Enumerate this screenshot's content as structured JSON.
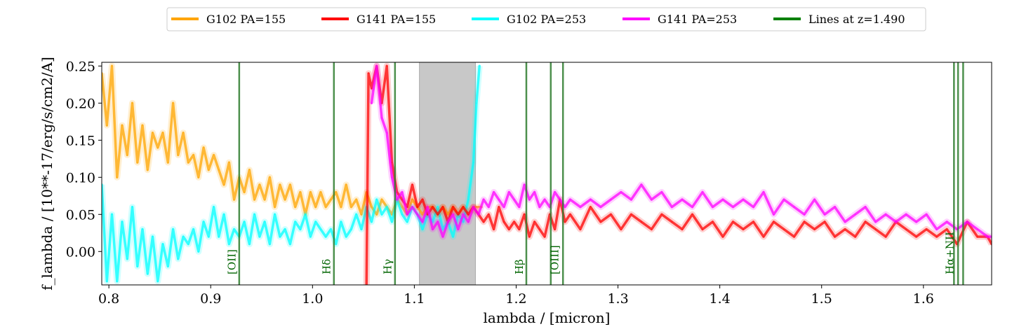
{
  "chart_data": {
    "type": "line",
    "xlabel": "lambda / [micron]",
    "ylabel": "f_lambda / [10**-17/erg/s/cm2/A]",
    "xlim": [
      0.793,
      1.667
    ],
    "ylim": [
      -0.045,
      0.255
    ],
    "xticks": [
      0.8,
      0.9,
      1.0,
      1.1,
      1.2,
      1.3,
      1.4,
      1.5,
      1.6
    ],
    "xtick_labels": [
      "0.8",
      "0.9",
      "1.0",
      "1.1",
      "1.2",
      "1.3",
      "1.4",
      "1.5",
      "1.6"
    ],
    "yticks": [
      0.0,
      0.05,
      0.1,
      0.15,
      0.2,
      0.25
    ],
    "ytick_labels": [
      "0.00",
      "0.05",
      "0.10",
      "0.15",
      "0.20",
      "0.25"
    ],
    "grid": false,
    "legend_position": "top-center, above plot",
    "legend": [
      {
        "label": "G102 PA=155",
        "color": "#ffa500"
      },
      {
        "label": "G141 PA=155",
        "color": "#ff0000"
      },
      {
        "label": "G102 PA=253",
        "color": "#00ffff"
      },
      {
        "label": "G141 PA=253",
        "color": "#ff00ff"
      },
      {
        "label": "Lines at z=1.490",
        "color": "#008000"
      }
    ],
    "masked_region": {
      "x": [
        1.105,
        1.16
      ],
      "color": "#c8c8c8"
    },
    "emission_lines": [
      {
        "label": "[OII]",
        "x": [
          0.928
        ],
        "label_x": 0.921
      },
      {
        "label": "Hδ",
        "x": [
          1.021
        ],
        "label_x": 1.014
      },
      {
        "label": "Hγ",
        "x": [
          1.081
        ],
        "label_x": 1.074
      },
      {
        "label": "Hβ",
        "x": [
          1.21
        ],
        "label_x": 1.203
      },
      {
        "label": "[OIII]",
        "x": [
          1.234,
          1.246
        ],
        "label_x": 1.238
      },
      {
        "label": "Hα+NII",
        "x": [
          1.63,
          1.634,
          1.639
        ],
        "label_x": 1.626
      }
    ],
    "series": [
      {
        "name": "G102 PA=155",
        "color": "#ffa500",
        "x": [
          0.793,
          0.798,
          0.803,
          0.808,
          0.813,
          0.818,
          0.823,
          0.828,
          0.833,
          0.838,
          0.843,
          0.848,
          0.853,
          0.858,
          0.863,
          0.868,
          0.873,
          0.878,
          0.883,
          0.888,
          0.893,
          0.898,
          0.903,
          0.908,
          0.913,
          0.918,
          0.923,
          0.928,
          0.933,
          0.938,
          0.943,
          0.948,
          0.953,
          0.958,
          0.963,
          0.968,
          0.973,
          0.978,
          0.983,
          0.988,
          0.993,
          0.998,
          1.003,
          1.008,
          1.013,
          1.018,
          1.023,
          1.028,
          1.033,
          1.038,
          1.043,
          1.048,
          1.053,
          1.058,
          1.063,
          1.068,
          1.073,
          1.078,
          1.083,
          1.088,
          1.093,
          1.098,
          1.103,
          1.108,
          1.113,
          1.118,
          1.123,
          1.128,
          1.133,
          1.138,
          1.143,
          1.148,
          1.153,
          1.158,
          1.163,
          1.166
        ],
        "y": [
          0.24,
          0.17,
          0.25,
          0.1,
          0.17,
          0.13,
          0.2,
          0.12,
          0.17,
          0.11,
          0.16,
          0.14,
          0.16,
          0.12,
          0.2,
          0.13,
          0.16,
          0.12,
          0.13,
          0.1,
          0.14,
          0.11,
          0.13,
          0.11,
          0.09,
          0.12,
          0.07,
          0.1,
          0.08,
          0.11,
          0.07,
          0.09,
          0.07,
          0.1,
          0.06,
          0.09,
          0.07,
          0.09,
          0.06,
          0.08,
          0.05,
          0.08,
          0.06,
          0.08,
          0.06,
          0.07,
          0.08,
          0.06,
          0.09,
          0.06,
          0.07,
          0.05,
          0.08,
          0.06,
          0.05,
          0.07,
          0.06,
          0.05,
          0.07,
          0.06,
          0.05,
          0.07,
          0.06,
          0.05,
          0.06,
          0.06,
          0.05,
          0.06,
          0.05,
          0.06,
          0.05,
          0.06,
          0.05,
          0.06,
          0.06,
          0.06
        ]
      },
      {
        "name": "G102 PA=253",
        "color": "#00ffff",
        "x": [
          0.793,
          0.798,
          0.803,
          0.808,
          0.813,
          0.818,
          0.823,
          0.828,
          0.833,
          0.838,
          0.843,
          0.848,
          0.853,
          0.858,
          0.863,
          0.868,
          0.873,
          0.878,
          0.883,
          0.888,
          0.893,
          0.898,
          0.903,
          0.908,
          0.913,
          0.918,
          0.923,
          0.928,
          0.933,
          0.938,
          0.943,
          0.948,
          0.953,
          0.958,
          0.963,
          0.968,
          0.973,
          0.978,
          0.983,
          0.988,
          0.993,
          0.998,
          1.003,
          1.008,
          1.013,
          1.018,
          1.023,
          1.028,
          1.033,
          1.038,
          1.043,
          1.048,
          1.053,
          1.058,
          1.063,
          1.068,
          1.073,
          1.078,
          1.083,
          1.088,
          1.093,
          1.098,
          1.103,
          1.108,
          1.113,
          1.118,
          1.123,
          1.128,
          1.133,
          1.138,
          1.143,
          1.148,
          1.153,
          1.158,
          1.161,
          1.164
        ],
        "y": [
          0.09,
          -0.04,
          0.05,
          -0.04,
          0.04,
          -0.01,
          0.06,
          -0.02,
          0.03,
          -0.03,
          0.02,
          -0.04,
          0.01,
          -0.02,
          0.03,
          -0.01,
          0.02,
          0.01,
          0.03,
          0.0,
          0.04,
          0.02,
          0.06,
          0.02,
          0.05,
          0.01,
          0.03,
          0.02,
          0.04,
          0.01,
          0.05,
          0.02,
          0.04,
          0.01,
          0.05,
          0.02,
          0.03,
          0.01,
          0.04,
          0.03,
          0.05,
          0.02,
          0.04,
          0.03,
          0.02,
          0.03,
          0.01,
          0.04,
          0.02,
          0.03,
          0.05,
          0.03,
          0.06,
          0.04,
          0.07,
          0.05,
          0.06,
          0.04,
          0.07,
          0.05,
          0.04,
          0.06,
          0.05,
          0.03,
          0.05,
          0.04,
          0.06,
          0.03,
          0.04,
          0.02,
          0.05,
          0.04,
          0.07,
          0.12,
          0.2,
          0.25
        ]
      },
      {
        "name": "G141 PA=155",
        "color": "#ff0000",
        "x": [
          1.053,
          1.055,
          1.058,
          1.063,
          1.068,
          1.073,
          1.078,
          1.083,
          1.088,
          1.093,
          1.098,
          1.103,
          1.108,
          1.113,
          1.118,
          1.123,
          1.128,
          1.133,
          1.138,
          1.143,
          1.148,
          1.153,
          1.158,
          1.163,
          1.168,
          1.173,
          1.178,
          1.183,
          1.188,
          1.193,
          1.198,
          1.203,
          1.208,
          1.213,
          1.218,
          1.223,
          1.228,
          1.233,
          1.238,
          1.243,
          1.248,
          1.253,
          1.263,
          1.273,
          1.283,
          1.293,
          1.303,
          1.313,
          1.323,
          1.333,
          1.343,
          1.353,
          1.363,
          1.373,
          1.383,
          1.393,
          1.403,
          1.413,
          1.423,
          1.433,
          1.443,
          1.453,
          1.463,
          1.473,
          1.483,
          1.493,
          1.503,
          1.513,
          1.523,
          1.533,
          1.543,
          1.553,
          1.563,
          1.573,
          1.583,
          1.593,
          1.603,
          1.613,
          1.623,
          1.633,
          1.643,
          1.653,
          1.663,
          1.667
        ],
        "y": [
          -0.045,
          0.24,
          0.22,
          0.25,
          0.2,
          0.25,
          0.12,
          0.08,
          0.07,
          0.06,
          0.09,
          0.06,
          0.07,
          0.05,
          0.06,
          0.05,
          0.06,
          0.04,
          0.06,
          0.05,
          0.06,
          0.05,
          0.06,
          0.05,
          0.04,
          0.05,
          0.03,
          0.06,
          0.04,
          0.03,
          0.04,
          0.03,
          0.05,
          0.02,
          0.04,
          0.03,
          0.02,
          0.05,
          0.03,
          0.07,
          0.04,
          0.05,
          0.03,
          0.06,
          0.04,
          0.05,
          0.03,
          0.05,
          0.04,
          0.03,
          0.05,
          0.04,
          0.03,
          0.05,
          0.03,
          0.04,
          0.02,
          0.04,
          0.03,
          0.04,
          0.02,
          0.04,
          0.03,
          0.02,
          0.04,
          0.03,
          0.04,
          0.02,
          0.03,
          0.02,
          0.04,
          0.03,
          0.02,
          0.04,
          0.03,
          0.02,
          0.03,
          0.02,
          0.03,
          0.01,
          0.04,
          0.02,
          0.02,
          0.01
        ]
      },
      {
        "name": "G141 PA=253",
        "color": "#ff00ff",
        "x": [
          1.058,
          1.063,
          1.068,
          1.073,
          1.078,
          1.083,
          1.088,
          1.093,
          1.098,
          1.103,
          1.108,
          1.113,
          1.118,
          1.123,
          1.128,
          1.133,
          1.138,
          1.143,
          1.148,
          1.153,
          1.158,
          1.163,
          1.168,
          1.173,
          1.178,
          1.183,
          1.188,
          1.193,
          1.198,
          1.203,
          1.208,
          1.213,
          1.218,
          1.223,
          1.228,
          1.233,
          1.238,
          1.243,
          1.248,
          1.253,
          1.263,
          1.273,
          1.283,
          1.293,
          1.303,
          1.313,
          1.323,
          1.333,
          1.343,
          1.353,
          1.363,
          1.373,
          1.383,
          1.393,
          1.403,
          1.413,
          1.423,
          1.433,
          1.443,
          1.453,
          1.463,
          1.473,
          1.483,
          1.493,
          1.503,
          1.513,
          1.523,
          1.533,
          1.543,
          1.553,
          1.563,
          1.573,
          1.583,
          1.593,
          1.603,
          1.613,
          1.623,
          1.633,
          1.643,
          1.653,
          1.663,
          1.667
        ],
        "y": [
          0.2,
          0.25,
          0.18,
          0.16,
          0.1,
          0.07,
          0.08,
          0.05,
          0.06,
          0.05,
          0.04,
          0.06,
          0.03,
          0.04,
          0.02,
          0.04,
          0.05,
          0.03,
          0.05,
          0.04,
          0.06,
          0.05,
          0.07,
          0.06,
          0.08,
          0.07,
          0.06,
          0.08,
          0.07,
          0.06,
          0.09,
          0.07,
          0.08,
          0.06,
          0.07,
          0.06,
          0.08,
          0.07,
          0.06,
          0.07,
          0.06,
          0.07,
          0.06,
          0.07,
          0.08,
          0.07,
          0.09,
          0.07,
          0.08,
          0.06,
          0.07,
          0.06,
          0.08,
          0.06,
          0.07,
          0.06,
          0.07,
          0.06,
          0.08,
          0.05,
          0.07,
          0.06,
          0.05,
          0.07,
          0.05,
          0.06,
          0.04,
          0.05,
          0.06,
          0.04,
          0.05,
          0.04,
          0.05,
          0.04,
          0.05,
          0.03,
          0.04,
          0.03,
          0.04,
          0.03,
          0.02,
          0.02
        ]
      }
    ]
  }
}
